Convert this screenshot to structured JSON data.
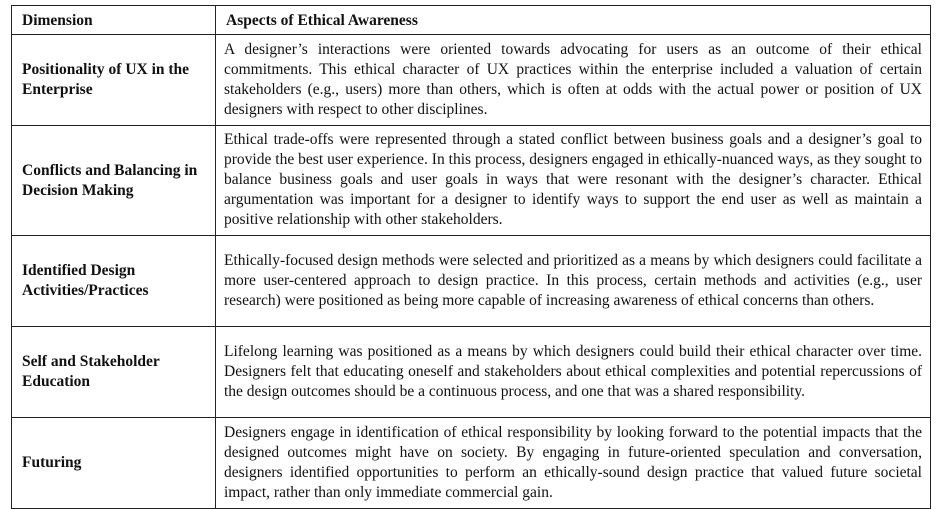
{
  "header": {
    "dimension": "Dimension",
    "aspects": "Aspects of Ethical Awareness"
  },
  "rows": [
    {
      "dimension": "Positionality of UX in the Enterprise",
      "aspects": "A designer’s interactions were oriented towards advocating for users as an outcome of their ethical commitments. This ethical character of UX practices within the enterprise included a valuation of certain stakeholders (e.g., users) more than others, which is often at odds with the actual power or position of UX designers with respect to other disciplines."
    },
    {
      "dimension": "Conflicts and Balancing in Decision Making",
      "aspects": "Ethical trade-offs were represented through a stated conflict between business goals and a designer’s goal to provide the best user experience. In this process, designers engaged in ethically-nuanced ways, as they sought to balance business goals and user goals in ways that were resonant with the designer’s character. Ethical argumentation was important for a designer to identify ways to support the end user as well as maintain a positive relationship with other stakeholders."
    },
    {
      "dimension": "Identified Design Activities/Practices",
      "aspects": "Ethically-focused design methods were selected and prioritized as a means by which designers could facilitate a more user-centered approach to design practice. In this process, certain methods and activities (e.g., user research) were positioned as being more capable of increasing awareness of ethical concerns than others."
    },
    {
      "dimension": "Self and Stakeholder Education",
      "aspects": "Lifelong learning was positioned as a means by which designers could build their ethical character over time. Designers felt that educating oneself and stakeholders about ethical complexities and potential repercussions of the design outcomes should be a continuous process, and one that was a shared responsibility."
    },
    {
      "dimension": "Futuring",
      "aspects": "Designers engage in identification of ethical responsibility by looking forward to the potential impacts that the designed outcomes might have on society. By engaging in future-oriented speculation and conversation, designers identified opportunities to perform an ethically-sound design practice that valued future societal impact, rather than only immediate commercial gain."
    }
  ]
}
